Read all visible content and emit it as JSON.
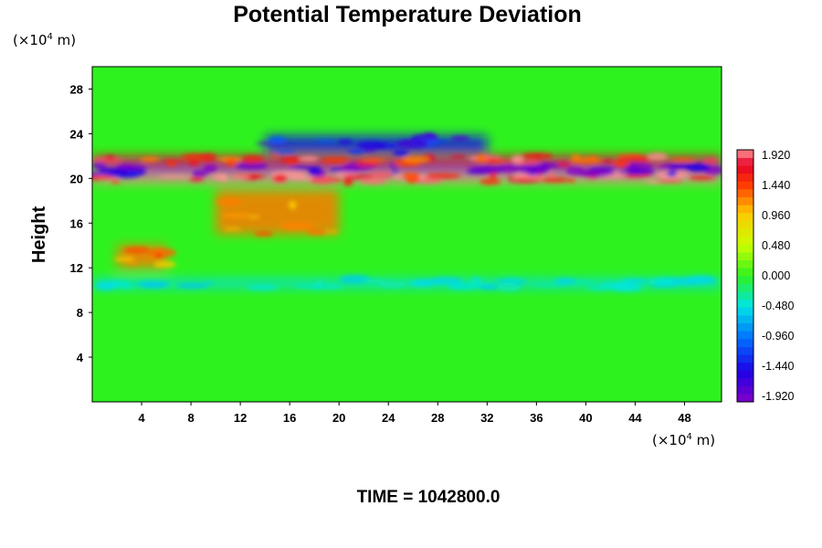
{
  "chart_data": {
    "type": "heatmap",
    "title": "Potential Temperature Deviation",
    "ylabel": "Height",
    "x_unit": {
      "prefix": "(×10",
      "exp": "4",
      "suffix": " m)"
    },
    "y_unit": {
      "prefix": "(×10",
      "exp": "4",
      "suffix": " m)"
    },
    "xlim": [
      0,
      51
    ],
    "ylim": [
      0,
      30
    ],
    "x_ticks": [
      4,
      8,
      12,
      16,
      20,
      24,
      28,
      32,
      36,
      40,
      44,
      48
    ],
    "y_ticks": [
      4,
      8,
      12,
      16,
      20,
      24,
      28
    ],
    "colorbar": {
      "min": -1.92,
      "max": 1.92,
      "step": 0.12,
      "ticks": [
        "1.920",
        "1.440",
        "0.960",
        "0.480",
        "0.000",
        "-0.480",
        "-0.960",
        "-1.440",
        "-1.920"
      ]
    },
    "features": [
      {
        "x": [
          0,
          51
        ],
        "y": [
          19.6,
          20.4
        ],
        "value": 1.9
      },
      {
        "x": [
          0,
          51
        ],
        "y": [
          20.4,
          21.2
        ],
        "value": -1.9
      },
      {
        "x": [
          0,
          51
        ],
        "y": [
          21.2,
          22.0
        ],
        "value": 1.6
      },
      {
        "x": [
          14,
          32
        ],
        "y": [
          22.3,
          23.8
        ],
        "value": -1.4
      },
      {
        "x": [
          10,
          20
        ],
        "y": [
          15,
          19
        ],
        "value": 1.2
      },
      {
        "x": [
          2,
          6
        ],
        "y": [
          12,
          14
        ],
        "value": 1.2
      },
      {
        "x": [
          0,
          51
        ],
        "y": [
          10.2,
          11.0
        ],
        "value": -0.5
      }
    ],
    "footer": "TIME = 1042800.0"
  }
}
